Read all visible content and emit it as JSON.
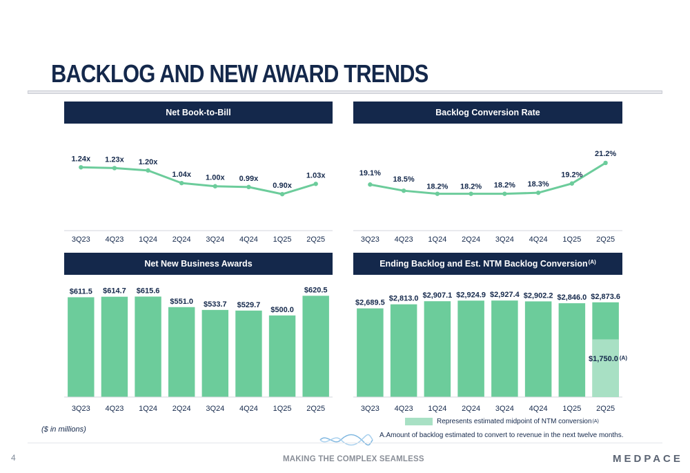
{
  "title": "BACKLOG AND NEW AWARD TRENDS",
  "page_number": "4",
  "tagline": "MAKING THE COMPLEX SEAMLESS",
  "logo": "MEDPACE",
  "units_note": "($ in millions)",
  "legend_text": "Represents estimated midpoint of NTM conversion",
  "legend_sup": "(A)",
  "footnote": "A.Amount of backlog estimated to convert to revenue in the next twelve months.",
  "colors": {
    "navy": "#14284b",
    "green": "#6ccc9b",
    "light_green": "#a8e0c4"
  },
  "chart_data": [
    {
      "id": "book_to_bill",
      "type": "line",
      "title": "Net Book-to-Bill",
      "categories": [
        "3Q23",
        "4Q23",
        "1Q24",
        "2Q24",
        "3Q24",
        "4Q24",
        "1Q25",
        "2Q25"
      ],
      "values": [
        1.24,
        1.23,
        1.2,
        1.04,
        1.0,
        0.99,
        0.9,
        1.03
      ],
      "labels": [
        "1.24x",
        "1.23x",
        "1.20x",
        "1.04x",
        "1.00x",
        "0.99x",
        "0.90x",
        "1.03x"
      ],
      "ylim": [
        0.7,
        1.4
      ]
    },
    {
      "id": "conversion_rate",
      "type": "line",
      "title": "Backlog Conversion Rate",
      "categories": [
        "3Q23",
        "4Q23",
        "1Q24",
        "2Q24",
        "3Q24",
        "4Q24",
        "1Q25",
        "2Q25"
      ],
      "values": [
        19.1,
        18.5,
        18.2,
        18.2,
        18.2,
        18.3,
        19.2,
        21.2
      ],
      "labels": [
        "19.1%",
        "18.5%",
        "18.2%",
        "18.2%",
        "18.2%",
        "18.3%",
        "19.2%",
        "21.2%"
      ],
      "ylim": [
        16.5,
        22.0
      ]
    },
    {
      "id": "new_business",
      "type": "bar",
      "title": "Net New Business Awards",
      "categories": [
        "3Q23",
        "4Q23",
        "1Q24",
        "2Q24",
        "3Q24",
        "4Q24",
        "1Q25",
        "2Q25"
      ],
      "values": [
        611.5,
        614.7,
        615.6,
        551.0,
        533.7,
        529.7,
        500.0,
        620.5
      ],
      "labels": [
        "$611.5",
        "$614.7",
        "$615.6",
        "$551.0",
        "$533.7",
        "$529.7",
        "$500.0",
        "$620.5"
      ],
      "ylim": [
        0,
        660
      ]
    },
    {
      "id": "ending_backlog",
      "type": "bar",
      "title": "Ending Backlog and Est. NTM Backlog Conversion",
      "title_sup": "(A)",
      "categories": [
        "3Q23",
        "4Q23",
        "1Q24",
        "2Q24",
        "3Q24",
        "4Q24",
        "1Q25",
        "2Q25"
      ],
      "values": [
        2689.5,
        2813.0,
        2907.1,
        2924.9,
        2927.4,
        2902.2,
        2846.0,
        2873.6
      ],
      "labels": [
        "$2,689.5",
        "$2,813.0",
        "$2,907.1",
        "$2,924.9",
        "$2,927.4",
        "$2,902.2",
        "$2,846.0",
        "$2,873.6"
      ],
      "ntm_conversion": {
        "category": "2Q25",
        "value": 1750.0,
        "label": "$1,750.0",
        "sup": "(A)"
      },
      "ylim": [
        0,
        3100
      ]
    }
  ]
}
